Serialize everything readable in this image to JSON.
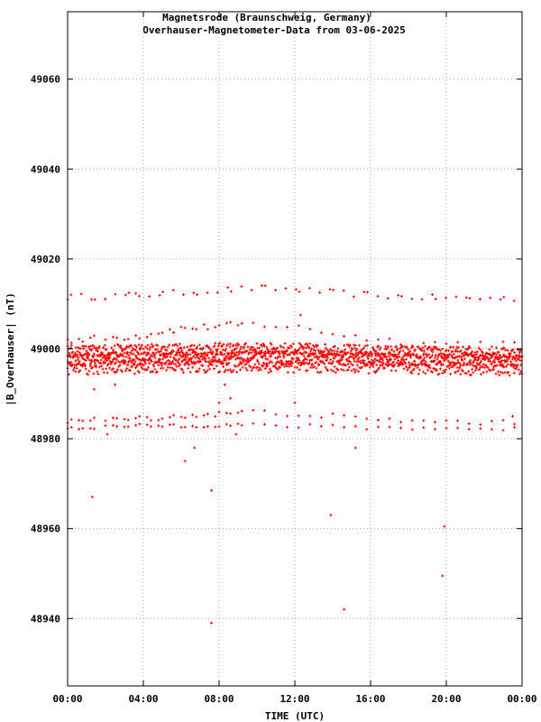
{
  "chart_data": {
    "type": "scatter",
    "title": "Magnetsrode (Braunschweig, Germany)",
    "subtitle": "Overhauser-Magnetometer-Data from 03-06-2025",
    "xlabel": "TIME (UTC)",
    "ylabel": "|B_Overhauser| (nT)",
    "xlim": [
      0,
      24
    ],
    "ylim": [
      48925,
      49075
    ],
    "x_ticks": [
      0,
      4,
      8,
      12,
      16,
      20,
      24
    ],
    "x_tick_labels": [
      "00:00",
      "04:00",
      "08:00",
      "12:00",
      "16:00",
      "20:00",
      "00:00"
    ],
    "y_ticks": [
      48940,
      48960,
      48980,
      49000,
      49020,
      49040,
      49060
    ],
    "y_tick_labels": [
      "48940",
      "48960",
      "48980",
      "49000",
      "49020",
      "49040",
      "49060"
    ],
    "grid": true,
    "point_color": "#ff0000",
    "bands": [
      {
        "x": [
          0,
          2,
          4,
          6,
          8,
          10,
          12,
          14,
          16,
          18,
          20,
          22,
          24
        ],
        "y": [
          49011.5,
          49011.7,
          49012,
          49012.5,
          49013,
          49013.5,
          49013.2,
          49012.5,
          49012,
          49011.5,
          49011.3,
          49011.2,
          49011.2
        ],
        "spread": 0.7,
        "step": 0.18,
        "gapped": true
      },
      {
        "x": [
          0,
          2,
          4,
          5,
          6,
          8,
          10,
          12,
          13,
          14,
          16,
          18,
          20,
          22,
          24
        ],
        "y": [
          49002,
          49002.3,
          49003,
          49004,
          49004.5,
          49005,
          49005.5,
          49004.8,
          49004.2,
          49003.5,
          49002.3,
          49001.5,
          49001.2,
          49001.2,
          49001
        ],
        "spread": 0.8,
        "step": 0.2,
        "gapped": true
      },
      {
        "x": [
          0,
          4,
          8,
          12,
          16,
          20,
          24
        ],
        "y": [
          48999.5,
          48999.8,
          49000,
          49000,
          48999.5,
          48999.2,
          48999
        ],
        "spread": 1.3,
        "step": 0.04,
        "gapped": false
      },
      {
        "x": [
          0,
          4,
          8,
          12,
          16,
          20,
          24
        ],
        "y": [
          48997.5,
          48997.8,
          48998,
          48998,
          48997.8,
          48997.5,
          48997.3
        ],
        "spread": 1.4,
        "step": 0.03,
        "gapped": false
      },
      {
        "x": [
          0,
          4,
          8,
          12,
          16,
          20,
          24
        ],
        "y": [
          48995.5,
          48995.8,
          48996,
          48996,
          48995.8,
          48995.5,
          48995.3
        ],
        "spread": 1.3,
        "step": 0.06,
        "gapped": false
      },
      {
        "x": [
          0,
          2,
          4,
          6,
          8,
          10,
          12,
          14,
          16,
          18,
          20,
          22,
          24
        ],
        "y": [
          48984,
          48984.2,
          48984.5,
          48985,
          48985.5,
          48986,
          48985.5,
          48985,
          48984.2,
          48984,
          48983.8,
          48983.6,
          48983.5
        ],
        "spread": 0.6,
        "step": 0.2,
        "gapped": true
      },
      {
        "x": [
          0,
          2,
          4,
          6,
          8,
          10,
          12,
          14,
          16,
          18,
          20,
          22,
          24
        ],
        "y": [
          48982.5,
          48982.6,
          48982.8,
          48983,
          48983,
          48983,
          48982.8,
          48982.6,
          48982.5,
          48982.4,
          48982.3,
          48982.2,
          48982.2
        ],
        "spread": 0.5,
        "step": 0.2,
        "gapped": true
      }
    ],
    "outliers": [
      {
        "x": 1.3,
        "y": 48967
      },
      {
        "x": 2.1,
        "y": 48981
      },
      {
        "x": 2.5,
        "y": 48992
      },
      {
        "x": 1.4,
        "y": 48991
      },
      {
        "x": 6.2,
        "y": 48975
      },
      {
        "x": 6.7,
        "y": 48978
      },
      {
        "x": 7.6,
        "y": 48968.5
      },
      {
        "x": 7.6,
        "y": 48939
      },
      {
        "x": 8.0,
        "y": 48988
      },
      {
        "x": 8.3,
        "y": 48992
      },
      {
        "x": 8.6,
        "y": 48989
      },
      {
        "x": 8.9,
        "y": 48981
      },
      {
        "x": 12.0,
        "y": 48988
      },
      {
        "x": 12.3,
        "y": 49007.5
      },
      {
        "x": 13.9,
        "y": 48963
      },
      {
        "x": 14.6,
        "y": 48942
      },
      {
        "x": 15.2,
        "y": 48978
      },
      {
        "x": 19.8,
        "y": 48949.5
      },
      {
        "x": 19.9,
        "y": 48960.5
      },
      {
        "x": 23.5,
        "y": 48985
      }
    ]
  }
}
